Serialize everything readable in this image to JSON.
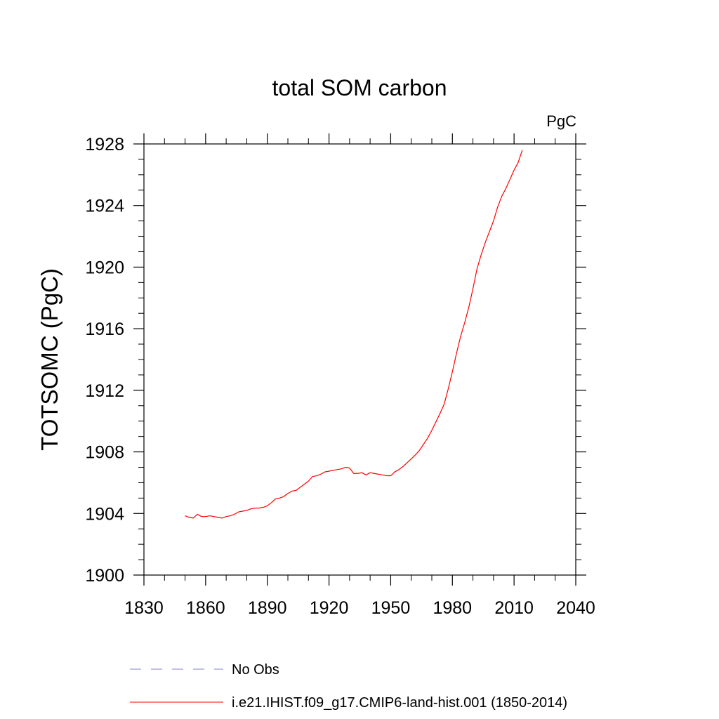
{
  "chart_data": {
    "type": "line",
    "title": "total SOM carbon",
    "units_label": "PgC",
    "ylabel": "TOTSOMC  (PgC)",
    "xlabel": "",
    "xlim": [
      1830,
      2040
    ],
    "ylim": [
      1900,
      1928
    ],
    "xticks": [
      1830,
      1860,
      1890,
      1920,
      1950,
      1980,
      2010,
      2040
    ],
    "yticks": [
      1900,
      1904,
      1908,
      1912,
      1916,
      1920,
      1924,
      1928
    ],
    "grid": false,
    "legend_position": "bottom",
    "colors": {
      "model": "#ff0000",
      "obs": "#8080d0"
    },
    "series": [
      {
        "name": "i.e21.IHIST.f09_g17.CMIP6-land-hist.001 (1850-2014)",
        "style": "solid",
        "x": [
          1850,
          1852,
          1854,
          1856,
          1858,
          1860,
          1862,
          1864,
          1866,
          1868,
          1870,
          1872,
          1874,
          1876,
          1878,
          1880,
          1882,
          1884,
          1886,
          1888,
          1890,
          1892,
          1894,
          1896,
          1898,
          1900,
          1902,
          1904,
          1906,
          1908,
          1910,
          1912,
          1914,
          1916,
          1918,
          1920,
          1922,
          1924,
          1926,
          1928,
          1930,
          1932,
          1934,
          1936,
          1938,
          1940,
          1942,
          1944,
          1946,
          1948,
          1950,
          1952,
          1954,
          1956,
          1958,
          1960,
          1962,
          1964,
          1966,
          1968,
          1970,
          1972,
          1974,
          1976,
          1978,
          1980,
          1982,
          1984,
          1986,
          1988,
          1990,
          1992,
          1994,
          1996,
          1998,
          2000,
          2002,
          2004,
          2006,
          2008,
          2010,
          2012,
          2014
        ],
        "values": [
          1903.85,
          1903.75,
          1903.7,
          1903.95,
          1903.8,
          1903.8,
          1903.85,
          1903.8,
          1903.75,
          1903.7,
          1903.8,
          1903.85,
          1903.95,
          1904.1,
          1904.15,
          1904.2,
          1904.3,
          1904.35,
          1904.35,
          1904.4,
          1904.5,
          1904.7,
          1904.95,
          1905.0,
          1905.1,
          1905.3,
          1905.45,
          1905.5,
          1905.7,
          1905.9,
          1906.1,
          1906.4,
          1906.45,
          1906.55,
          1906.7,
          1906.75,
          1906.8,
          1906.85,
          1906.9,
          1907.0,
          1906.95,
          1906.6,
          1906.6,
          1906.65,
          1906.5,
          1906.65,
          1906.6,
          1906.55,
          1906.5,
          1906.45,
          1906.45,
          1906.7,
          1906.85,
          1907.05,
          1907.3,
          1907.55,
          1907.8,
          1908.1,
          1908.5,
          1908.9,
          1909.4,
          1909.95,
          1910.5,
          1911.1,
          1912.1,
          1913.2,
          1914.4,
          1915.5,
          1916.4,
          1917.4,
          1918.6,
          1919.9,
          1920.8,
          1921.6,
          1922.3,
          1923.0,
          1923.9,
          1924.6,
          1925.1,
          1925.7,
          1926.3,
          1926.8,
          1927.6
        ]
      },
      {
        "name": "No Obs",
        "style": "dashed",
        "x": [],
        "values": []
      }
    ]
  }
}
